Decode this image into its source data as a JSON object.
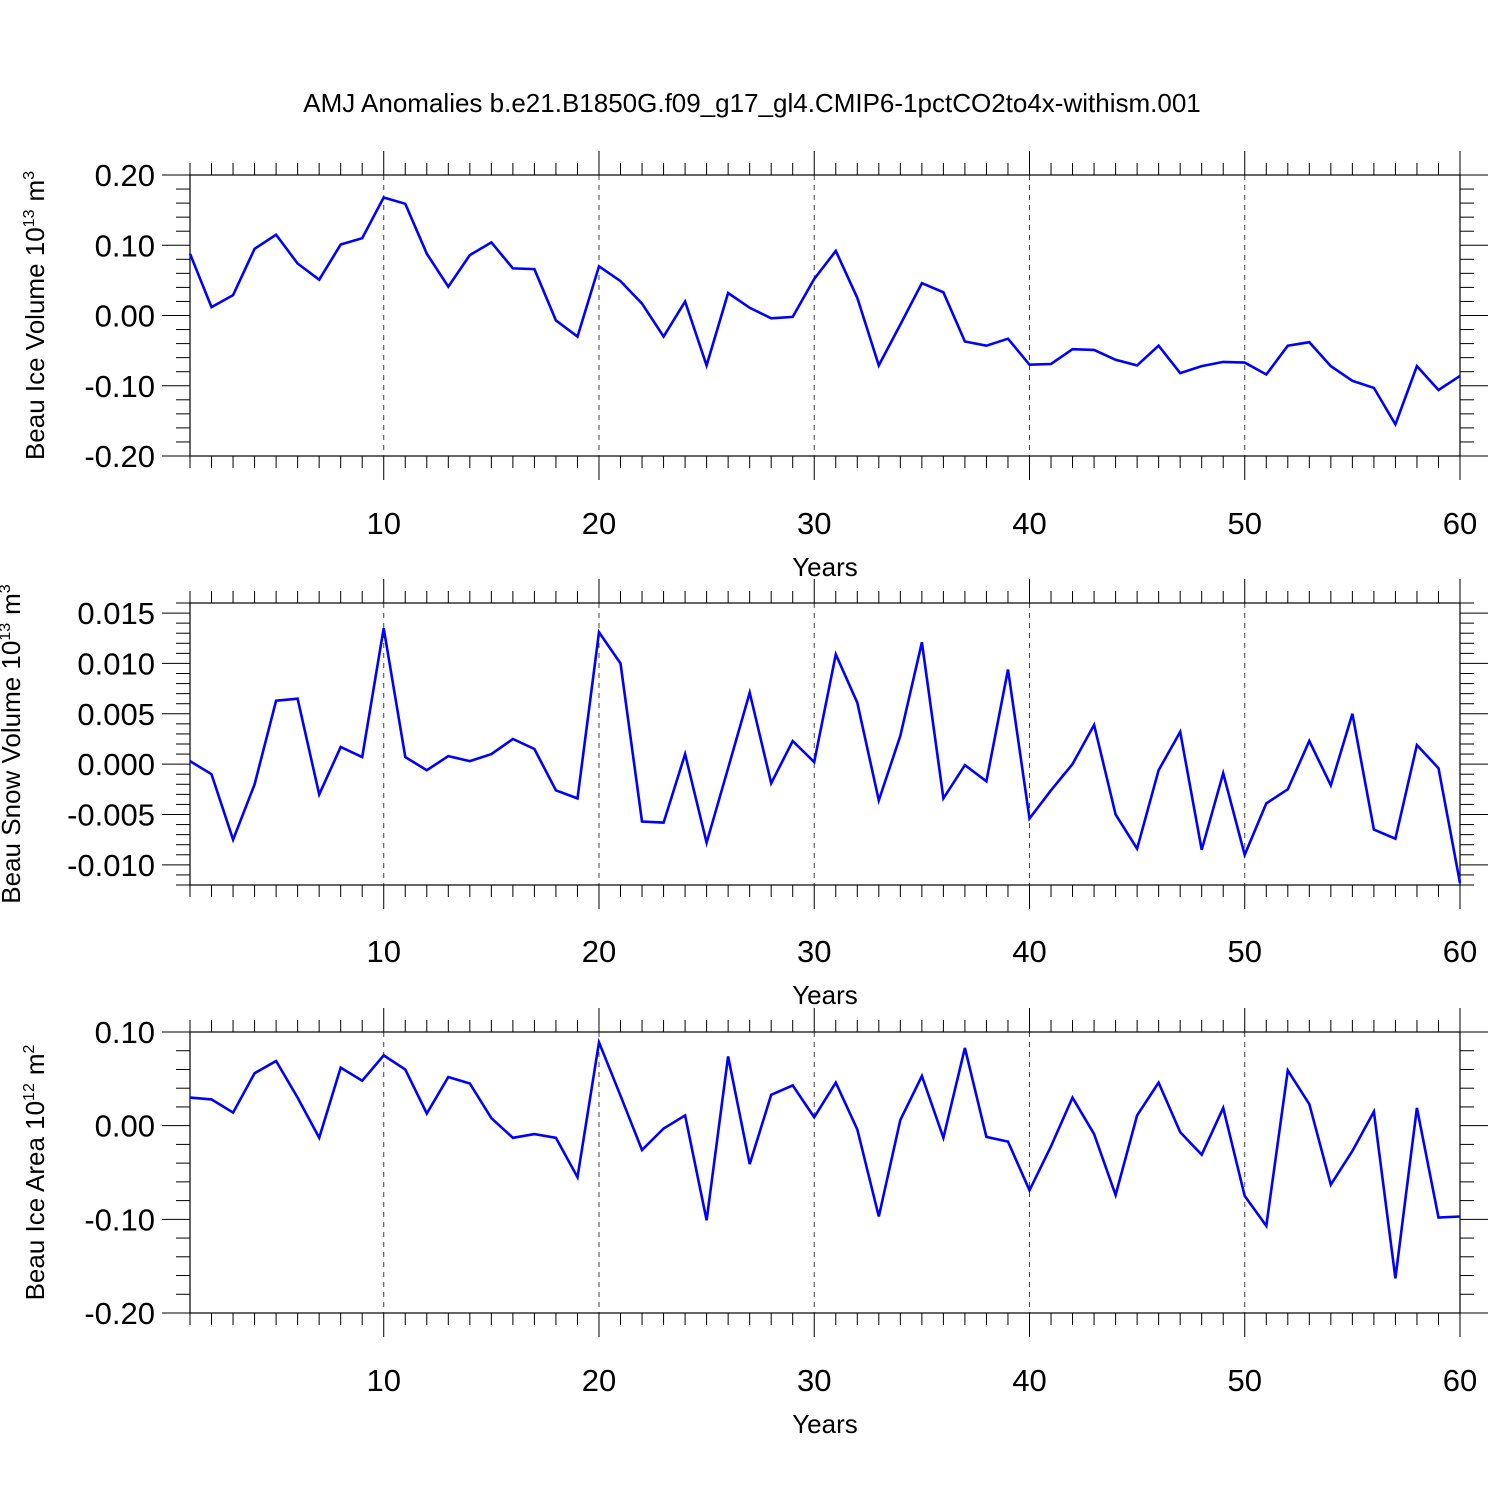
{
  "title": "AMJ Anomalies b.e21.B1850G.f09_g17_gl4.CMIP6-1pctCO2to4x-withism.001",
  "line_color": "#0000ff",
  "chart_data": [
    {
      "type": "line",
      "title": "AMJ Anomalies b.e21.B1850G.f09_g17_gl4.CMIP6-1pctCO2to4x-withism.001",
      "xlabel": "Years",
      "ylabel_main": "Beau Ice Volume 10",
      "ylabel_sup": "13",
      "ylabel_unit": "m",
      "ylabel_unit_sup": "3",
      "xlim": [
        1,
        60
      ],
      "ylim": [
        -0.2,
        0.2
      ],
      "xticks": [
        10,
        20,
        30,
        40,
        50,
        60
      ],
      "xtick_labels": [
        "10",
        "20",
        "30",
        "40",
        "50",
        "60"
      ],
      "yticks": [
        -0.2,
        -0.1,
        0.0,
        0.1,
        0.2
      ],
      "ytick_labels": [
        "-0.20",
        "-0.10",
        "0.00",
        "0.10",
        "0.20"
      ],
      "grid": "vertical dashed at x ticks",
      "series": [
        {
          "x": [
            1,
            2,
            3,
            4,
            5,
            6,
            7,
            8,
            9,
            10,
            11,
            12,
            13,
            14,
            15,
            16,
            17,
            18,
            19,
            20,
            21,
            22,
            23,
            24,
            25,
            26,
            27,
            28,
            29,
            30,
            31,
            32,
            33,
            34,
            35,
            36,
            37,
            38,
            39,
            40,
            41,
            42,
            43,
            44,
            45,
            46,
            47,
            48,
            49,
            50,
            51,
            52,
            53,
            54,
            55,
            56,
            57,
            58,
            59,
            60
          ],
          "values": [
            0.088,
            0.012,
            0.029,
            0.095,
            0.115,
            0.074,
            0.051,
            0.101,
            0.11,
            0.168,
            0.159,
            0.088,
            0.041,
            0.086,
            0.104,
            0.067,
            0.066,
            -0.007,
            -0.03,
            0.07,
            0.049,
            0.017,
            -0.03,
            0.02,
            -0.071,
            0.032,
            0.011,
            -0.004,
            -0.002,
            0.052,
            0.092,
            0.025,
            -0.071,
            -0.013,
            0.046,
            0.033,
            -0.037,
            -0.043,
            -0.033,
            -0.07,
            -0.069,
            -0.048,
            -0.049,
            -0.063,
            -0.071,
            -0.043,
            -0.082,
            -0.072,
            -0.066,
            -0.067,
            -0.084,
            -0.043,
            -0.038,
            -0.072,
            -0.093,
            -0.103,
            -0.155,
            -0.072,
            -0.106,
            -0.086
          ]
        }
      ]
    },
    {
      "type": "line",
      "xlabel": "Years",
      "ylabel_main": "Beau Snow Volume 10",
      "ylabel_sup": "13",
      "ylabel_unit": "m",
      "ylabel_unit_sup": "3",
      "xlim": [
        1,
        60
      ],
      "ylim": [
        -0.012,
        0.016
      ],
      "xticks": [
        10,
        20,
        30,
        40,
        50,
        60
      ],
      "xtick_labels": [
        "10",
        "20",
        "30",
        "40",
        "50",
        "60"
      ],
      "yticks": [
        -0.01,
        -0.005,
        0.0,
        0.005,
        0.01,
        0.015
      ],
      "ytick_labels": [
        "-0.010",
        "-0.005",
        "0.000",
        "0.005",
        "0.010",
        "0.015"
      ],
      "grid": "vertical dashed at x ticks",
      "series": [
        {
          "x": [
            1,
            2,
            3,
            4,
            5,
            6,
            7,
            8,
            9,
            10,
            11,
            12,
            13,
            14,
            15,
            16,
            17,
            18,
            19,
            20,
            21,
            22,
            23,
            24,
            25,
            26,
            27,
            28,
            29,
            30,
            31,
            32,
            33,
            34,
            35,
            36,
            37,
            38,
            39,
            40,
            41,
            42,
            43,
            44,
            45,
            46,
            47,
            48,
            49,
            50,
            51,
            52,
            53,
            54,
            55,
            56,
            57,
            58,
            59,
            60
          ],
          "values": [
            0.0003,
            -0.001,
            -0.0075,
            -0.002,
            0.0063,
            0.0065,
            -0.003,
            0.0017,
            0.0007,
            0.0135,
            0.0007,
            -0.0006,
            0.0008,
            0.0003,
            0.001,
            0.0025,
            0.0015,
            -0.0026,
            -0.0034,
            0.0131,
            0.01,
            -0.0057,
            -0.0058,
            0.001,
            -0.0078,
            -0.0004,
            0.0071,
            -0.0019,
            0.0023,
            0.0002,
            0.0109,
            0.0061,
            -0.0036,
            0.0028,
            0.0121,
            -0.0034,
            -0.0001,
            -0.0017,
            0.0094,
            -0.0054,
            -0.0026,
            0.0,
            0.0039,
            -0.005,
            -0.0084,
            -0.0006,
            0.0032,
            -0.0085,
            -0.0009,
            -0.009,
            -0.0039,
            -0.0025,
            0.0023,
            -0.0021,
            0.005,
            -0.0065,
            -0.0074,
            0.0019,
            -0.0004,
            -0.0118
          ]
        }
      ]
    },
    {
      "type": "line",
      "xlabel": "Years",
      "ylabel_main": "Beau Ice Area 10",
      "ylabel_sup": "12",
      "ylabel_unit": "m",
      "ylabel_unit_sup": "2",
      "xlim": [
        1,
        60
      ],
      "ylim": [
        -0.2,
        0.1
      ],
      "xticks": [
        10,
        20,
        30,
        40,
        50,
        60
      ],
      "xtick_labels": [
        "10",
        "20",
        "30",
        "40",
        "50",
        "60"
      ],
      "yticks": [
        -0.2,
        -0.1,
        0.0,
        0.1
      ],
      "ytick_labels": [
        "-0.20",
        "-0.10",
        "0.00",
        "0.10"
      ],
      "grid": "vertical dashed at x ticks",
      "series": [
        {
          "x": [
            1,
            2,
            3,
            4,
            5,
            6,
            7,
            8,
            9,
            10,
            11,
            12,
            13,
            14,
            15,
            16,
            17,
            18,
            19,
            20,
            21,
            22,
            23,
            24,
            25,
            26,
            27,
            28,
            29,
            30,
            31,
            32,
            33,
            34,
            35,
            36,
            37,
            38,
            39,
            40,
            41,
            42,
            43,
            44,
            45,
            46,
            47,
            48,
            49,
            50,
            51,
            52,
            53,
            54,
            55,
            56,
            57,
            58,
            59,
            60
          ],
          "values": [
            0.03,
            0.028,
            0.014,
            0.056,
            0.069,
            0.03,
            -0.013,
            0.062,
            0.048,
            0.075,
            0.06,
            0.013,
            0.052,
            0.045,
            0.008,
            -0.013,
            -0.009,
            -0.013,
            -0.055,
            0.089,
            0.032,
            -0.026,
            -0.003,
            0.011,
            -0.101,
            0.074,
            -0.041,
            0.033,
            0.043,
            0.009,
            0.046,
            -0.004,
            -0.097,
            0.006,
            0.053,
            -0.013,
            0.083,
            -0.012,
            -0.017,
            -0.069,
            -0.022,
            0.03,
            -0.009,
            -0.074,
            0.011,
            0.046,
            -0.007,
            -0.031,
            0.019,
            -0.075,
            -0.107,
            0.059,
            0.023,
            -0.063,
            -0.027,
            0.015,
            -0.163,
            0.019,
            -0.098,
            -0.097
          ]
        }
      ]
    }
  ]
}
